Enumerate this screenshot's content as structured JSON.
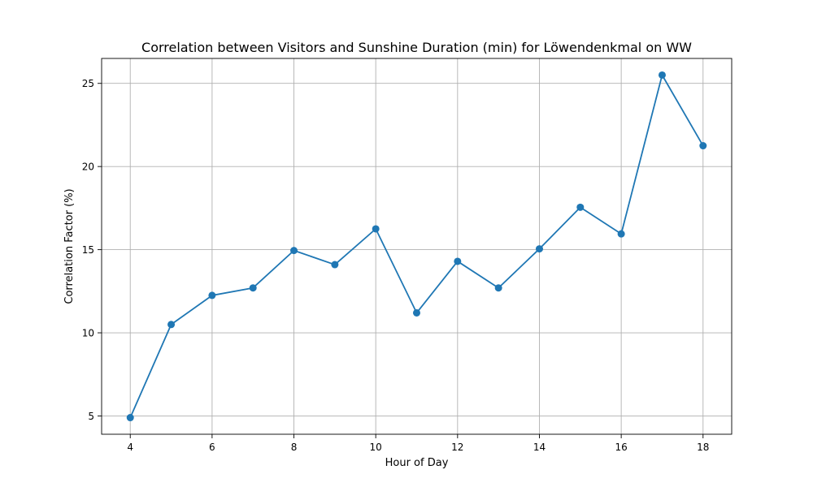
{
  "chart_data": {
    "type": "line",
    "title": "Correlation between Visitors and Sunshine Duration (min) for Löwendenkmal on WW",
    "xlabel": "Hour of Day",
    "ylabel": "Correlation Factor (%)",
    "x": [
      4,
      5,
      6,
      7,
      8,
      9,
      10,
      11,
      12,
      13,
      14,
      15,
      16,
      17,
      18
    ],
    "series": [
      {
        "values": [
          4.9,
          10.5,
          12.25,
          12.7,
          14.95,
          14.1,
          16.25,
          11.2,
          14.3,
          12.7,
          15.05,
          17.55,
          15.95,
          25.5,
          21.25
        ]
      }
    ],
    "xlim": [
      3.3,
      18.7
    ],
    "ylim": [
      3.9,
      26.5
    ],
    "xticks": [
      4,
      6,
      8,
      10,
      12,
      14,
      16,
      18
    ],
    "yticks": [
      5,
      10,
      15,
      20,
      25
    ],
    "grid": true,
    "legend": "none",
    "colors": {
      "line": "#1f77b4",
      "grid": "#b0b0b0"
    }
  }
}
